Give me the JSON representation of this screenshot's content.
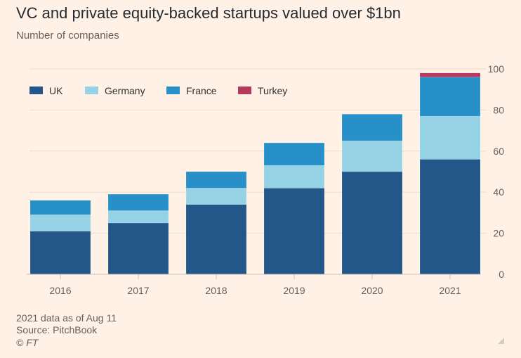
{
  "title": "VC and private equity-backed startups valued over $1bn",
  "subtitle": "Number of companies",
  "footer": {
    "note": "2021 data as of Aug 11",
    "source": "Source: PitchBook",
    "copyright": "© FT"
  },
  "chart_data": {
    "type": "bar",
    "stacked": true,
    "title": "VC and private equity-backed startups valued over $1bn",
    "ylabel": "Number of companies",
    "xlabel": "",
    "categories": [
      "2016",
      "2017",
      "2018",
      "2019",
      "2020",
      "2021"
    ],
    "series": [
      {
        "name": "UK",
        "color": "#235789",
        "values": [
          21,
          25,
          34,
          42,
          50,
          56
        ]
      },
      {
        "name": "Germany",
        "color": "#96d2e5",
        "values": [
          8,
          6,
          8,
          11,
          15,
          21
        ]
      },
      {
        "name": "France",
        "color": "#2890c8",
        "values": [
          7,
          8,
          8,
          11,
          13,
          19
        ]
      },
      {
        "name": "Turkey",
        "color": "#b5385f",
        "values": [
          0,
          0,
          0,
          0,
          0,
          2
        ]
      }
    ],
    "ylim": [
      0,
      100
    ],
    "yticks": [
      0,
      20,
      40,
      60,
      80,
      100
    ],
    "grid": true,
    "legend": "top-left",
    "yaxis_side": "right"
  }
}
